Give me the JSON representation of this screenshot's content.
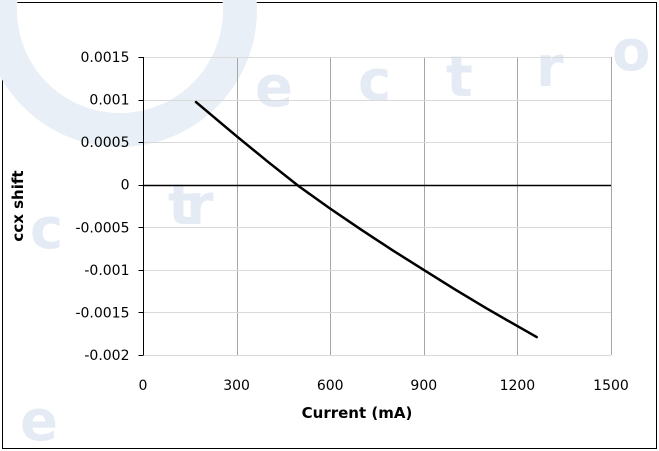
{
  "chart_data": {
    "type": "line",
    "title": "",
    "xlabel": "Current (mA)",
    "ylabel": "ccx shift",
    "xlim": [
      0,
      1500
    ],
    "ylim": [
      -0.002,
      0.0015
    ],
    "x_ticks": [
      0,
      300,
      600,
      900,
      1200,
      1500
    ],
    "x_tick_labels": [
      "0",
      "300",
      "600",
      "900",
      "1200",
      "1500"
    ],
    "y_ticks": [
      0.0015,
      0.001,
      0.0005,
      0,
      -0.0005,
      -0.001,
      -0.0015,
      -0.002
    ],
    "y_tick_labels": [
      "0.0015",
      "0.001",
      "0.0005",
      "0",
      "-0.0005",
      "-0.001",
      "-0.0015",
      "-0.002"
    ],
    "grid": "vertical",
    "legend": "none",
    "series": [
      {
        "color": "#000000",
        "x": [
          170,
          300,
          400,
          500,
          600,
          700,
          800,
          900,
          1000,
          1100,
          1200,
          1262
        ],
        "values": [
          0.00097,
          0.00057,
          0.00027,
          -2e-05,
          -0.00028,
          -0.00053,
          -0.00077,
          -0.001,
          -0.00123,
          -0.00145,
          -0.00166,
          -0.00179
        ]
      }
    ],
    "colors": {
      "line": "#000000",
      "grid": "#a6a6a6",
      "zero_line": "#000000"
    }
  }
}
